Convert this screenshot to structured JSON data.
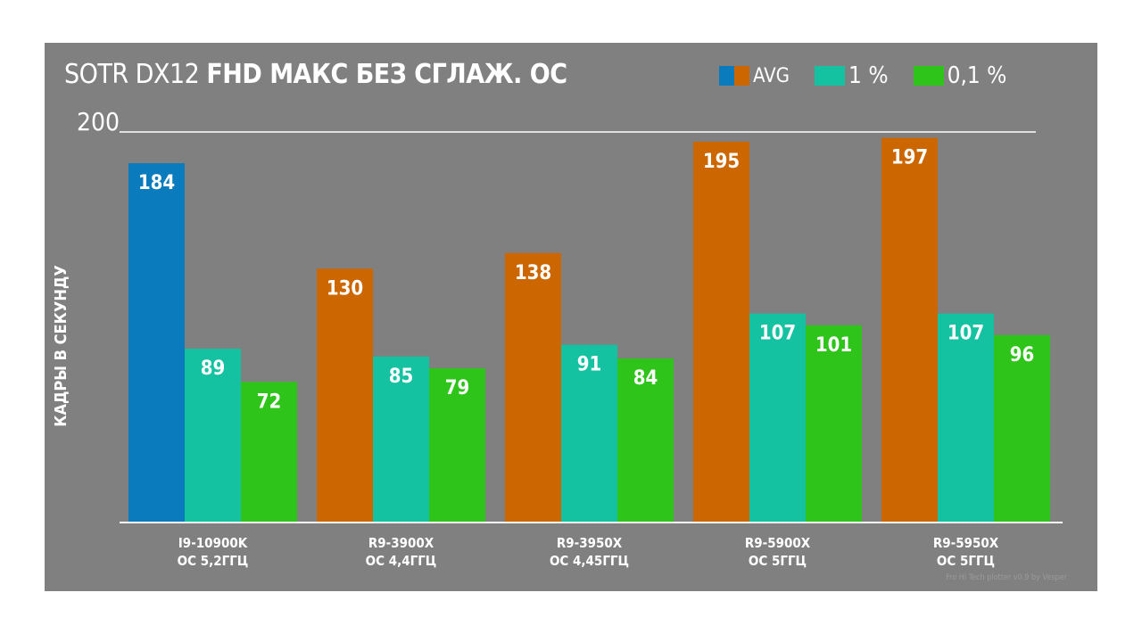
{
  "title": {
    "part1": "SOTR DX12 ",
    "part2": "FHD МАКС БЕЗ СГЛАЖ. ОС"
  },
  "legend": [
    {
      "label": "AVG",
      "colors": [
        "#0a7bbd",
        "#cc6600"
      ]
    },
    {
      "label": "1 %",
      "colors": [
        "#14c1a0"
      ]
    },
    {
      "label": "0,1 %",
      "colors": [
        "#2ec41a"
      ]
    }
  ],
  "watermark": "Fro Hi Tech plotter v0.9 by Vesper",
  "chart_data": {
    "type": "bar",
    "title": "SOTR DX12 FHD МАКС БЕЗ СГЛАЖ. ОС",
    "ylabel": "КАДРЫ В СЕКУНДУ",
    "xlabel": "",
    "ylim": [
      0,
      200
    ],
    "yticks": [
      200
    ],
    "grid": false,
    "legend_position": "top-right",
    "categories": [
      [
        "I9-10900K",
        "ОС 5,2ГГЦ"
      ],
      [
        "R9-3900X",
        "ОС 4,4ГГЦ"
      ],
      [
        "R9-3950X",
        "ОС 4,45ГГЦ"
      ],
      [
        "R9-5900X",
        "ОС 5ГГЦ"
      ],
      [
        "R9-5950X",
        "ОС 5ГГЦ"
      ]
    ],
    "series": [
      {
        "name": "AVG",
        "values": [
          184,
          130,
          138,
          195,
          197
        ],
        "colors": [
          "#0a7bbd",
          "#cc6600",
          "#cc6600",
          "#cc6600",
          "#cc6600"
        ]
      },
      {
        "name": "1 %",
        "values": [
          89,
          85,
          91,
          107,
          107
        ],
        "colors": [
          "#14c1a0",
          "#14c1a0",
          "#14c1a0",
          "#14c1a0",
          "#14c1a0"
        ]
      },
      {
        "name": "0,1 %",
        "values": [
          72,
          79,
          84,
          101,
          96
        ],
        "colors": [
          "#2ec41a",
          "#2ec41a",
          "#2ec41a",
          "#2ec41a",
          "#2ec41a"
        ]
      }
    ]
  }
}
